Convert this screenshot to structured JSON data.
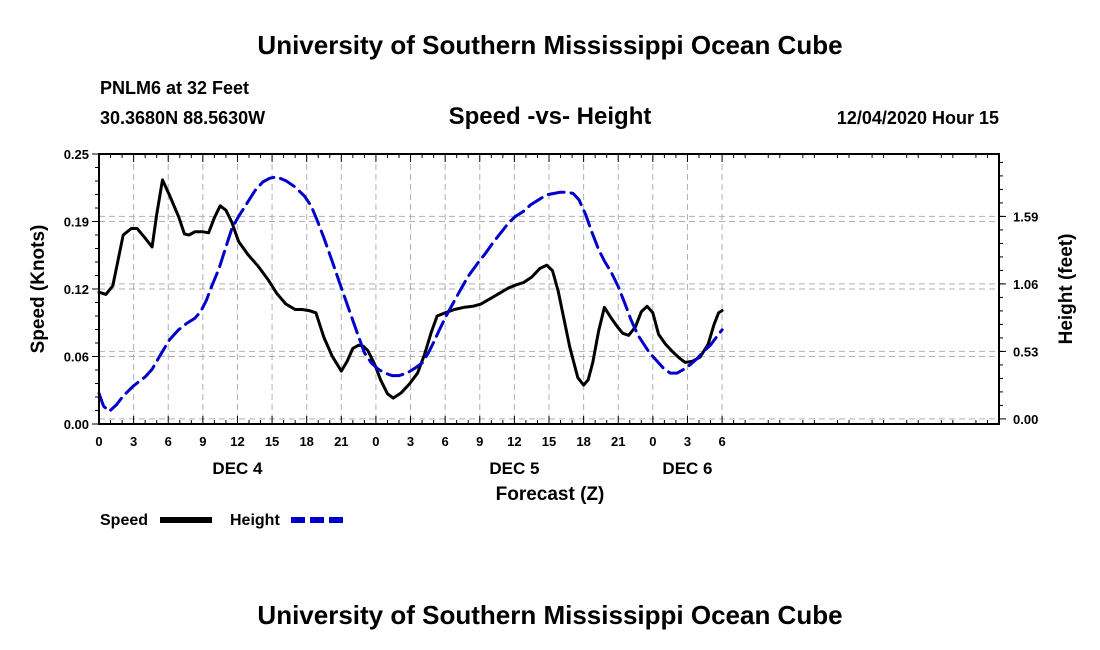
{
  "header": {
    "title": "University of Southern Mississippi Ocean Cube",
    "station": "PNLM6 at 32 Feet",
    "coords": "30.3680N 88.5630W",
    "date": "12/04/2020 Hour 15",
    "footer": "University of Southern Mississippi Ocean Cube"
  },
  "colors": {
    "speed": "#000000",
    "height": "#0000cc",
    "grid": "#b0b0b0"
  },
  "chart_data": {
    "type": "line",
    "title": "Speed -vs- Height",
    "xlabel": "Forecast (Z)",
    "ylabel_left": "Speed (Knots)",
    "ylabel_right": "Height (feet)",
    "x_range": [
      0,
      78
    ],
    "x_ticks": [
      {
        "x": 0,
        "label": "0"
      },
      {
        "x": 3,
        "label": "3"
      },
      {
        "x": 6,
        "label": "6"
      },
      {
        "x": 9,
        "label": "9"
      },
      {
        "x": 12,
        "label": "12"
      },
      {
        "x": 15,
        "label": "15"
      },
      {
        "x": 18,
        "label": "18"
      },
      {
        "x": 21,
        "label": "21"
      },
      {
        "x": 24,
        "label": "0"
      },
      {
        "x": 27,
        "label": "3"
      },
      {
        "x": 30,
        "label": "6"
      },
      {
        "x": 33,
        "label": "9"
      },
      {
        "x": 36,
        "label": "12"
      },
      {
        "x": 39,
        "label": "15"
      },
      {
        "x": 42,
        "label": "18"
      },
      {
        "x": 45,
        "label": "21"
      },
      {
        "x": 48,
        "label": "0"
      },
      {
        "x": 51,
        "label": "3"
      },
      {
        "x": 54,
        "label": "6"
      }
    ],
    "day_labels": [
      {
        "x": 12,
        "label": "DEC 4"
      },
      {
        "x": 36,
        "label": "DEC 5"
      },
      {
        "x": 51,
        "label": "DEC 6"
      }
    ],
    "y_left": {
      "range": [
        0,
        0.25
      ],
      "ticks": [
        {
          "v": 0,
          "label": "0.00"
        },
        {
          "v": 0.0625,
          "label": "0.06"
        },
        {
          "v": 0.125,
          "label": "0.12"
        },
        {
          "v": 0.1875,
          "label": "0.19"
        },
        {
          "v": 0.25,
          "label": "0.25"
        }
      ]
    },
    "y_right": {
      "range": [
        -0.04,
        2.08
      ],
      "ticks": [
        {
          "v": 0.0,
          "label": "0.00"
        },
        {
          "v": 0.53,
          "label": "0.53"
        },
        {
          "v": 1.06,
          "label": "1.06"
        },
        {
          "v": 1.59,
          "label": "1.59"
        }
      ]
    },
    "series": [
      {
        "name": "Speed",
        "axis": "left",
        "x": [
          0,
          0.6,
          1.2,
          2.1,
          2.8,
          3.3,
          4.0,
          4.6,
          5.0,
          5.5,
          6.1,
          6.9,
          7.4,
          7.8,
          8.3,
          9.0,
          9.5,
          10.0,
          10.5,
          11.0,
          11.5,
          12.1,
          12.9,
          13.8,
          14.7,
          15.4,
          16.2,
          17.0,
          17.6,
          18.2,
          18.8,
          19.5,
          20.2,
          21.0,
          21.5,
          22.0,
          22.5,
          22.9,
          23.3,
          23.9,
          24.4,
          25.0,
          25.5,
          26.2,
          26.9,
          27.6,
          28.2,
          28.8,
          29.3,
          30.0,
          30.8,
          31.6,
          32.4,
          33.1,
          33.9,
          34.7,
          35.5,
          36.2,
          36.8,
          37.5,
          38.2,
          38.8,
          39.3,
          39.8,
          40.3,
          40.8,
          41.5,
          42.0,
          42.4,
          42.8,
          43.3,
          43.8,
          44.4,
          45.0,
          45.4,
          45.9,
          46.5,
          47.0,
          47.5,
          48.0,
          48.5,
          49.1,
          49.7,
          50.3,
          50.8,
          51.4,
          52.1,
          52.8,
          53.3,
          53.7,
          54.0
        ],
        "y": [
          0.122,
          0.12,
          0.128,
          0.175,
          0.181,
          0.181,
          0.172,
          0.164,
          0.194,
          0.226,
          0.212,
          0.192,
          0.176,
          0.175,
          0.178,
          0.178,
          0.177,
          0.191,
          0.202,
          0.198,
          0.187,
          0.169,
          0.157,
          0.146,
          0.133,
          0.121,
          0.111,
          0.106,
          0.106,
          0.105,
          0.103,
          0.08,
          0.063,
          0.049,
          0.058,
          0.07,
          0.073,
          0.072,
          0.068,
          0.055,
          0.041,
          0.028,
          0.024,
          0.029,
          0.037,
          0.047,
          0.064,
          0.085,
          0.1,
          0.103,
          0.106,
          0.108,
          0.109,
          0.111,
          0.116,
          0.121,
          0.126,
          0.129,
          0.131,
          0.136,
          0.144,
          0.147,
          0.142,
          0.123,
          0.097,
          0.071,
          0.043,
          0.036,
          0.041,
          0.057,
          0.086,
          0.108,
          0.098,
          0.089,
          0.084,
          0.082,
          0.09,
          0.104,
          0.109,
          0.103,
          0.083,
          0.074,
          0.067,
          0.061,
          0.057,
          0.058,
          0.062,
          0.074,
          0.092,
          0.103,
          0.105
        ]
      },
      {
        "name": "Height",
        "axis": "right",
        "x": [
          0,
          0.4,
          0.9,
          1.5,
          2.1,
          3.0,
          4.0,
          4.6,
          5.3,
          6.1,
          6.9,
          7.6,
          8.3,
          8.8,
          9.3,
          9.8,
          10.4,
          11.0,
          11.5,
          12.1,
          12.8,
          13.5,
          14.2,
          14.8,
          15.4,
          16.2,
          17.0,
          17.8,
          18.4,
          18.9,
          19.5,
          20.2,
          21.0,
          21.7,
          22.4,
          23.0,
          23.6,
          24.2,
          24.8,
          25.4,
          26.0,
          26.7,
          27.4,
          28.0,
          28.5,
          29.0,
          29.5,
          30.1,
          30.7,
          31.3,
          32.0,
          32.8,
          33.5,
          34.2,
          34.9,
          35.5,
          36.1,
          36.8,
          37.4,
          38.1,
          38.8,
          39.4,
          40.0,
          40.6,
          41.1,
          41.6,
          42.2,
          42.7,
          43.3,
          43.8,
          44.4,
          45.0,
          45.6,
          46.1,
          46.7,
          47.2,
          47.7,
          48.3,
          48.9,
          49.5,
          50.1,
          50.7,
          51.3,
          51.9,
          52.4,
          53.0,
          53.5,
          54.0
        ],
        "y": [
          0.2,
          0.1,
          0.06,
          0.11,
          0.18,
          0.26,
          0.33,
          0.39,
          0.5,
          0.62,
          0.7,
          0.75,
          0.79,
          0.84,
          0.93,
          1.05,
          1.18,
          1.35,
          1.49,
          1.59,
          1.69,
          1.79,
          1.86,
          1.89,
          1.9,
          1.87,
          1.82,
          1.75,
          1.67,
          1.56,
          1.42,
          1.24,
          1.03,
          0.85,
          0.67,
          0.52,
          0.44,
          0.39,
          0.36,
          0.34,
          0.34,
          0.36,
          0.4,
          0.44,
          0.51,
          0.6,
          0.7,
          0.81,
          0.91,
          1.01,
          1.12,
          1.22,
          1.3,
          1.39,
          1.47,
          1.54,
          1.59,
          1.63,
          1.68,
          1.72,
          1.76,
          1.77,
          1.78,
          1.78,
          1.77,
          1.72,
          1.6,
          1.47,
          1.33,
          1.24,
          1.15,
          1.04,
          0.9,
          0.78,
          0.66,
          0.59,
          0.52,
          0.46,
          0.4,
          0.36,
          0.36,
          0.39,
          0.43,
          0.48,
          0.53,
          0.58,
          0.64,
          0.7
        ]
      }
    ],
    "legend": [
      {
        "name": "Speed",
        "style": "solid"
      },
      {
        "name": "Height",
        "style": "dashed"
      }
    ]
  }
}
